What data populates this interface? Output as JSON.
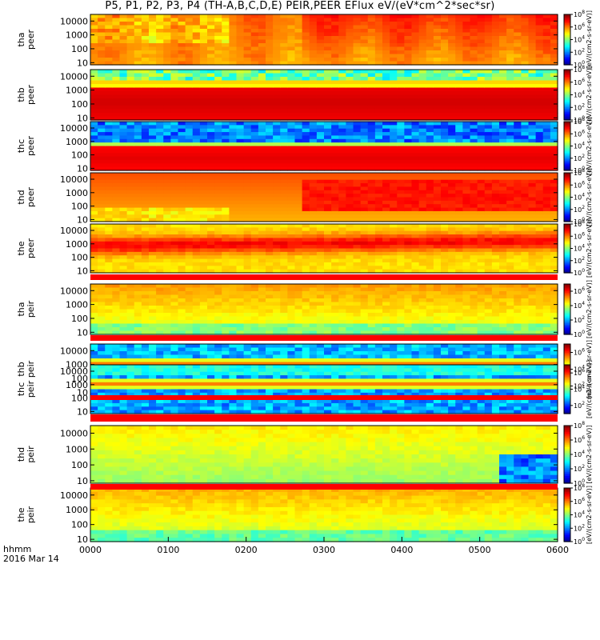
{
  "title": "P5, P1, P2, P3, P4 (TH-A,B,C,D,E) PEIR,PEER EFlux eV/(eV*cm^2*sec*sr)",
  "time_axis": {
    "ticks": [
      "0000",
      "0100",
      "0200",
      "0300",
      "0400",
      "0500",
      "0600"
    ],
    "label_line1": "hhmm",
    "label_line2": "2016 Mar 14"
  },
  "colorbar_label": "[eV/(cm2-s-sr-eV)]",
  "chart_data": [
    {
      "type": "heatmap",
      "panel": "tha peer",
      "ylabel": "tha\npeer",
      "yscale": "log",
      "ylim": [
        7,
        30000
      ],
      "yticks": [
        10,
        100,
        1000,
        10000
      ],
      "colorbar_ticks": [
        "10^0",
        "10^2",
        "10^4",
        "10^6",
        "10^8"
      ],
      "clim_exp": [
        0,
        8
      ],
      "xlim": [
        "0000",
        "0600"
      ]
    },
    {
      "type": "heatmap",
      "panel": "thb peer",
      "ylabel": "thb\npeer",
      "yscale": "log",
      "ylim": [
        7,
        30000
      ],
      "yticks": [
        10,
        100,
        1000,
        10000
      ],
      "colorbar_ticks": [
        "10^0",
        "10^2",
        "10^4",
        "10^6",
        "10^8"
      ],
      "clim_exp": [
        0,
        8
      ],
      "xlim": [
        "0000",
        "0600"
      ]
    },
    {
      "type": "heatmap",
      "panel": "thc peer",
      "ylabel": "thc\npeer",
      "yscale": "log",
      "ylim": [
        7,
        30000
      ],
      "yticks": [
        10,
        100,
        1000,
        10000
      ],
      "colorbar_ticks": [
        "10^0",
        "10^2",
        "10^4",
        "10^6",
        "10^8"
      ],
      "clim_exp": [
        0,
        8
      ],
      "xlim": [
        "0000",
        "0600"
      ]
    },
    {
      "type": "heatmap",
      "panel": "thd peer",
      "ylabel": "thd\npeer",
      "yscale": "log",
      "ylim": [
        7,
        30000
      ],
      "yticks": [
        10,
        100,
        1000,
        10000
      ],
      "colorbar_ticks": [
        "10^0",
        "10^2",
        "10^4",
        "10^6",
        "10^8"
      ],
      "clim_exp": [
        0,
        8
      ],
      "xlim": [
        "0000",
        "0600"
      ]
    },
    {
      "type": "heatmap",
      "panel": "the peer",
      "ylabel": "the\npeer",
      "yscale": "log",
      "ylim": [
        7,
        30000
      ],
      "yticks": [
        10,
        100,
        1000,
        10000
      ],
      "colorbar_ticks": [
        "10^0",
        "10^2",
        "10^4",
        "10^6",
        "10^8"
      ],
      "clim_exp": [
        0,
        8
      ],
      "xlim": [
        "0000",
        "0600"
      ]
    },
    {
      "type": "heatmap",
      "panel": "tha peir",
      "ylabel": "tha\npeir",
      "yscale": "log",
      "ylim": [
        7,
        30000
      ],
      "yticks": [
        10,
        100,
        1000,
        10000
      ],
      "colorbar_ticks": [
        "10^0",
        "10^2",
        "10^4",
        "10^6"
      ],
      "clim_exp": [
        0,
        7
      ],
      "xlim": [
        "0000",
        "0600"
      ]
    },
    {
      "type": "heatmap",
      "panel": "thb peir",
      "ylabel": "thb\npeir",
      "yscale": "log",
      "ylim": [
        7,
        30000
      ],
      "yticks": [
        10,
        100,
        1000,
        10000
      ],
      "colorbar_ticks": [
        "10^2",
        "10^4",
        "10^6"
      ],
      "clim_exp": [
        1,
        7
      ],
      "xlim": [
        "0000",
        "0600"
      ]
    },
    {
      "type": "heatmap",
      "panel": "thc peir",
      "ylabel": "thc\npeir",
      "yscale": "log",
      "ylim": [
        7,
        30000
      ],
      "yticks": [
        10,
        100,
        1000,
        10000
      ],
      "colorbar_ticks": [
        "10^2",
        "10^4",
        "10^6"
      ],
      "clim_exp": [
        1,
        7
      ],
      "xlim": [
        "0000",
        "0600"
      ]
    },
    {
      "type": "heatmap",
      "panel": "thd peir",
      "ylabel": "thd\npeir",
      "yscale": "log",
      "ylim": [
        7,
        30000
      ],
      "yticks": [
        10,
        100,
        1000,
        10000
      ],
      "colorbar_ticks": [
        "10^0",
        "10^2",
        "10^4",
        "10^6",
        "10^8"
      ],
      "clim_exp": [
        0,
        8
      ],
      "xlim": [
        "0000",
        "0600"
      ]
    },
    {
      "type": "heatmap",
      "panel": "the peir",
      "ylabel": "the\npeir",
      "yscale": "log",
      "ylim": [
        7,
        30000
      ],
      "yticks": [
        10,
        100,
        1000,
        10000
      ],
      "colorbar_ticks": [
        "10^0",
        "10^2",
        "10^4",
        "10^6",
        "10^8"
      ],
      "clim_exp": [
        0,
        8
      ],
      "xlim": [
        "0000",
        "0600"
      ]
    }
  ]
}
